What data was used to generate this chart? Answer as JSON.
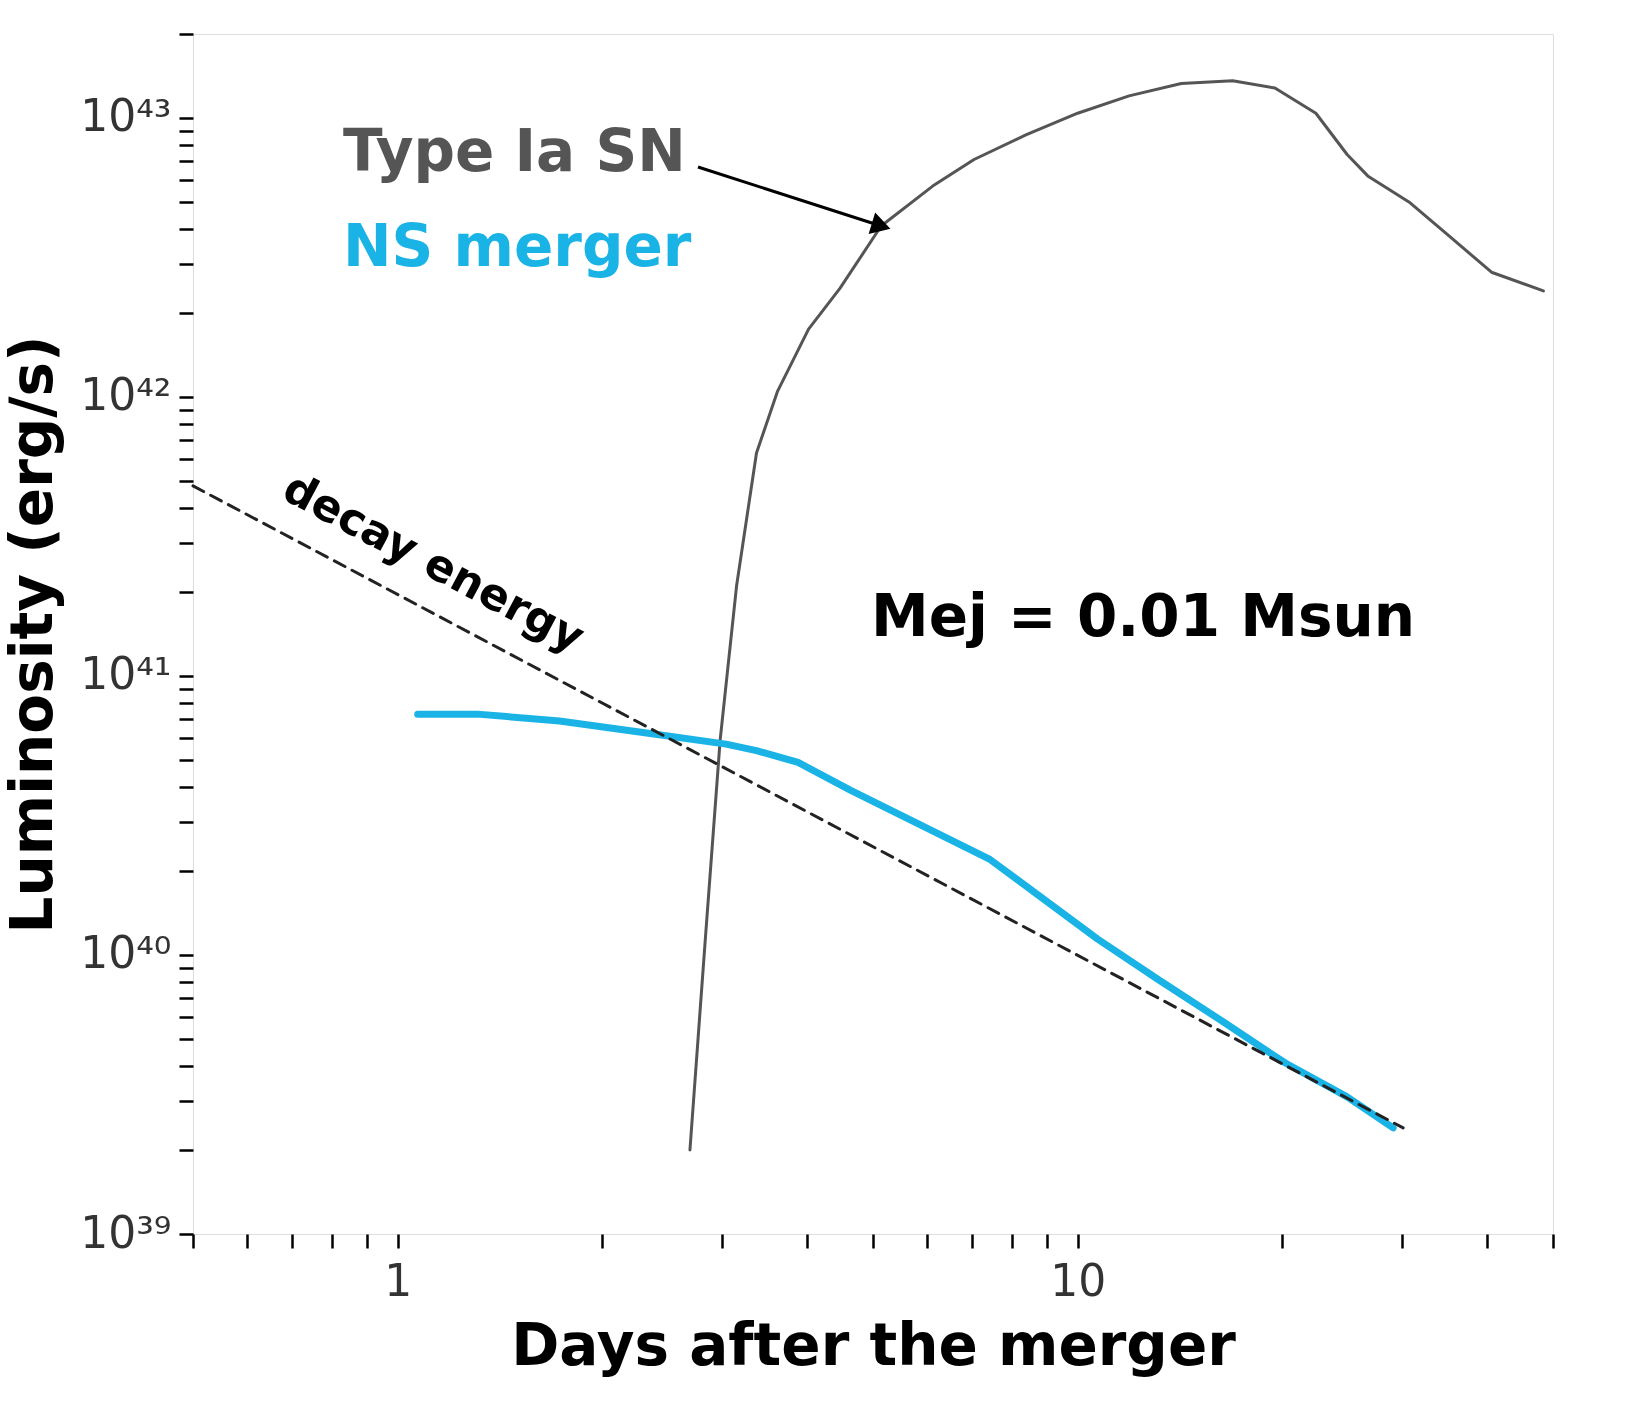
{
  "chart_data": {
    "type": "line",
    "xlabel": "Days after the merger",
    "ylabel": "Luminosity (erg/s)",
    "log": "xy",
    "grid": false,
    "xlim": [
      0.5,
      50
    ],
    "ylim": [
      1e+39,
      2e+43
    ],
    "xticks": [
      {
        "value": 0.5,
        "label": null
      },
      {
        "value": 0.6,
        "label": null
      },
      {
        "value": 0.7,
        "label": null
      },
      {
        "value": 0.8,
        "label": null
      },
      {
        "value": 0.9,
        "label": null
      },
      1,
      {
        "value": 2,
        "label": null
      },
      {
        "value": 3,
        "label": null
      },
      {
        "value": 4,
        "label": null
      },
      {
        "value": 5,
        "label": null
      },
      {
        "value": 6,
        "label": null
      },
      {
        "value": 7,
        "label": null
      },
      {
        "value": 8,
        "label": null
      },
      {
        "value": 9,
        "label": null
      },
      10,
      {
        "value": 20,
        "label": null
      },
      {
        "value": 30,
        "label": null
      },
      {
        "value": 40,
        "label": null
      },
      {
        "value": 50,
        "label": null
      }
    ],
    "yticks": [
      {
        "value": 1e+39,
        "label": "10³⁹"
      },
      {
        "value": 2e+39,
        "label": null
      },
      {
        "value": 3e+39,
        "label": null
      },
      {
        "value": 4e+39,
        "label": null
      },
      {
        "value": 5e+39,
        "label": null
      },
      {
        "value": 6e+39,
        "label": null
      },
      {
        "value": 7e+39,
        "label": null
      },
      {
        "value": 8e+39,
        "label": null
      },
      {
        "value": 9e+39,
        "label": null
      },
      {
        "value": 1e+40,
        "label": "10⁴⁰"
      },
      {
        "value": 2e+40,
        "label": null
      },
      {
        "value": 3e+40,
        "label": null
      },
      {
        "value": 4e+40,
        "label": null
      },
      {
        "value": 5e+40,
        "label": null
      },
      {
        "value": 6e+40,
        "label": null
      },
      {
        "value": 7e+40,
        "label": null
      },
      {
        "value": 8e+40,
        "label": null
      },
      {
        "value": 9e+40,
        "label": null
      },
      {
        "value": 1e+41,
        "label": "10⁴¹"
      },
      {
        "value": 2e+41,
        "label": null
      },
      {
        "value": 3e+41,
        "label": null
      },
      {
        "value": 4e+41,
        "label": null
      },
      {
        "value": 5e+41,
        "label": null
      },
      {
        "value": 6e+41,
        "label": null
      },
      {
        "value": 7e+41,
        "label": null
      },
      {
        "value": 8e+41,
        "label": null
      },
      {
        "value": 9e+41,
        "label": null
      },
      {
        "value": 1e+42,
        "label": "10⁴²"
      },
      {
        "value": 2e+42,
        "label": null
      },
      {
        "value": 3e+42,
        "label": null
      },
      {
        "value": 4e+42,
        "label": null
      },
      {
        "value": 5e+42,
        "label": null
      },
      {
        "value": 6e+42,
        "label": null
      },
      {
        "value": 7e+42,
        "label": null
      },
      {
        "value": 8e+42,
        "label": null
      },
      {
        "value": 9e+42,
        "label": null
      },
      {
        "value": 1e+43,
        "label": "10⁴³"
      },
      {
        "value": 2e+43,
        "label": null
      }
    ],
    "series": [
      {
        "name": "Type Ia SN",
        "color": "#555555",
        "x": [
          2.69,
          2.83,
          2.98,
          3.15,
          3.37,
          3.62,
          4.02,
          4.47,
          5.14,
          6.12,
          7.04,
          8.39,
          10,
          11.9,
          14.2,
          16.9,
          19.5,
          22.4,
          24.9,
          26.7,
          30.7,
          35.3,
          40.6,
          48.4
        ],
        "values": [
          2e+39,
          1.09e+40,
          5.9e+40,
          2.1e+41,
          6.3e+41,
          1.05e+42,
          1.75e+42,
          2.45e+42,
          4.1e+42,
          5.7e+42,
          7.1e+42,
          8.7e+42,
          1.04e+43,
          1.2e+43,
          1.33e+43,
          1.36e+43,
          1.28e+43,
          1.04e+43,
          7.4e+42,
          6.2e+42,
          5e+42,
          3.75e+42,
          2.8e+42,
          2.4e+42
        ]
      },
      {
        "name": "NS merger",
        "color": "#1ab3e6",
        "x": [
          1.07,
          1.31,
          1.73,
          2.38,
          3.04,
          3.37,
          3.88,
          4.63,
          5.91,
          7.43,
          8.69,
          10.7,
          13.2,
          16.3,
          20.2,
          24.9,
          29.1
        ],
        "values": [
          7.3e+40,
          7.3e+40,
          6.9e+40,
          6.2e+40,
          5.7e+40,
          5.4e+40,
          4.9e+40,
          3.9e+40,
          2.9e+40,
          2.2e+40,
          1.66e+40,
          1.14e+40,
          8.1e+39,
          5.8e+39,
          4.1e+39,
          3.1e+39,
          2.4e+39
        ]
      },
      {
        "name": "decay energy",
        "color": "#222222",
        "line_style": "dashed",
        "x": [
          0.5,
          30.1
        ],
        "values": [
          4.8e+41,
          2.4e+39
        ]
      }
    ],
    "annotations": [
      "Mej = 0.01 Msun"
    ]
  }
}
